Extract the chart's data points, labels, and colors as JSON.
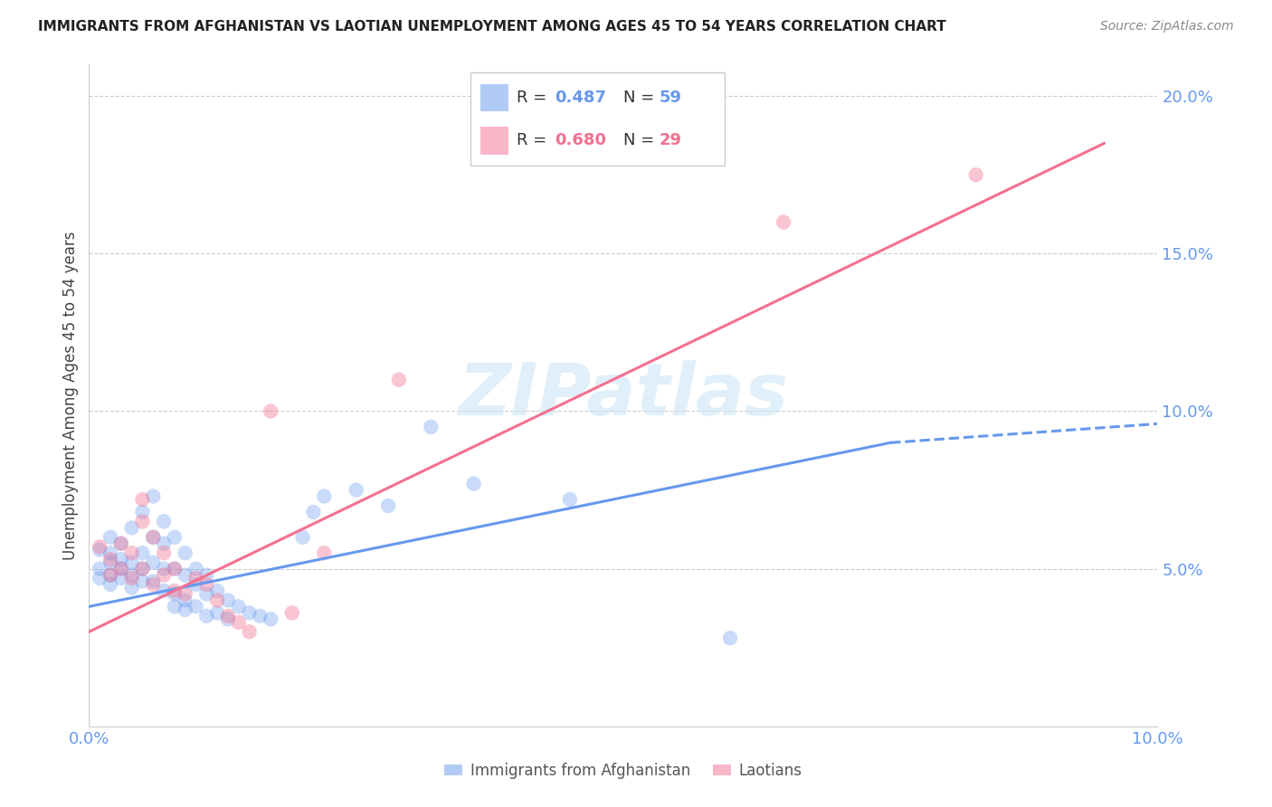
{
  "title": "IMMIGRANTS FROM AFGHANISTAN VS LAOTIAN UNEMPLOYMENT AMONG AGES 45 TO 54 YEARS CORRELATION CHART",
  "source": "Source: ZipAtlas.com",
  "ylabel": "Unemployment Among Ages 45 to 54 years",
  "xlim": [
    0.0,
    0.1
  ],
  "ylim": [
    0.0,
    0.21
  ],
  "yticks": [
    0.05,
    0.1,
    0.15,
    0.2
  ],
  "ytick_labels": [
    "5.0%",
    "10.0%",
    "15.0%",
    "20.0%"
  ],
  "blue_color": "#6699EE",
  "pink_color": "#F47090",
  "blue_scatter": [
    [
      0.001,
      0.056
    ],
    [
      0.001,
      0.05
    ],
    [
      0.001,
      0.047
    ],
    [
      0.002,
      0.06
    ],
    [
      0.002,
      0.055
    ],
    [
      0.002,
      0.052
    ],
    [
      0.002,
      0.048
    ],
    [
      0.002,
      0.045
    ],
    [
      0.003,
      0.058
    ],
    [
      0.003,
      0.053
    ],
    [
      0.003,
      0.05
    ],
    [
      0.003,
      0.047
    ],
    [
      0.004,
      0.063
    ],
    [
      0.004,
      0.052
    ],
    [
      0.004,
      0.048
    ],
    [
      0.004,
      0.044
    ],
    [
      0.005,
      0.068
    ],
    [
      0.005,
      0.055
    ],
    [
      0.005,
      0.05
    ],
    [
      0.005,
      0.046
    ],
    [
      0.006,
      0.073
    ],
    [
      0.006,
      0.06
    ],
    [
      0.006,
      0.052
    ],
    [
      0.006,
      0.046
    ],
    [
      0.007,
      0.065
    ],
    [
      0.007,
      0.058
    ],
    [
      0.007,
      0.05
    ],
    [
      0.007,
      0.043
    ],
    [
      0.008,
      0.06
    ],
    [
      0.008,
      0.05
    ],
    [
      0.008,
      0.042
    ],
    [
      0.008,
      0.038
    ],
    [
      0.009,
      0.055
    ],
    [
      0.009,
      0.048
    ],
    [
      0.009,
      0.04
    ],
    [
      0.009,
      0.037
    ],
    [
      0.01,
      0.05
    ],
    [
      0.01,
      0.045
    ],
    [
      0.01,
      0.038
    ],
    [
      0.011,
      0.048
    ],
    [
      0.011,
      0.042
    ],
    [
      0.011,
      0.035
    ],
    [
      0.012,
      0.043
    ],
    [
      0.012,
      0.036
    ],
    [
      0.013,
      0.04
    ],
    [
      0.013,
      0.034
    ],
    [
      0.014,
      0.038
    ],
    [
      0.015,
      0.036
    ],
    [
      0.016,
      0.035
    ],
    [
      0.017,
      0.034
    ],
    [
      0.02,
      0.06
    ],
    [
      0.021,
      0.068
    ],
    [
      0.022,
      0.073
    ],
    [
      0.025,
      0.075
    ],
    [
      0.028,
      0.07
    ],
    [
      0.032,
      0.095
    ],
    [
      0.036,
      0.077
    ],
    [
      0.045,
      0.072
    ],
    [
      0.06,
      0.028
    ]
  ],
  "pink_scatter": [
    [
      0.001,
      0.057
    ],
    [
      0.002,
      0.053
    ],
    [
      0.002,
      0.048
    ],
    [
      0.003,
      0.05
    ],
    [
      0.003,
      0.058
    ],
    [
      0.004,
      0.047
    ],
    [
      0.004,
      0.055
    ],
    [
      0.005,
      0.05
    ],
    [
      0.005,
      0.065
    ],
    [
      0.005,
      0.072
    ],
    [
      0.006,
      0.045
    ],
    [
      0.006,
      0.06
    ],
    [
      0.007,
      0.048
    ],
    [
      0.007,
      0.055
    ],
    [
      0.008,
      0.043
    ],
    [
      0.008,
      0.05
    ],
    [
      0.009,
      0.042
    ],
    [
      0.01,
      0.047
    ],
    [
      0.011,
      0.045
    ],
    [
      0.012,
      0.04
    ],
    [
      0.013,
      0.035
    ],
    [
      0.014,
      0.033
    ],
    [
      0.015,
      0.03
    ],
    [
      0.017,
      0.1
    ],
    [
      0.019,
      0.036
    ],
    [
      0.022,
      0.055
    ],
    [
      0.029,
      0.11
    ],
    [
      0.065,
      0.16
    ],
    [
      0.083,
      0.175
    ]
  ],
  "blue_trendline_solid": [
    [
      0.0,
      0.038
    ],
    [
      0.075,
      0.09
    ]
  ],
  "blue_trendline_dashed": [
    [
      0.075,
      0.09
    ],
    [
      0.1,
      0.096
    ]
  ],
  "pink_trendline": [
    [
      0.0,
      0.03
    ],
    [
      0.095,
      0.185
    ]
  ],
  "watermark_text": "ZIPatlas",
  "legend_top_r1": "R = 0.487",
  "legend_top_n1": "N = 59",
  "legend_top_r2": "R = 0.680",
  "legend_top_n2": "N = 29",
  "legend_bot_blue": "Immigrants from Afghanistan",
  "legend_bot_pink": "Laotians"
}
